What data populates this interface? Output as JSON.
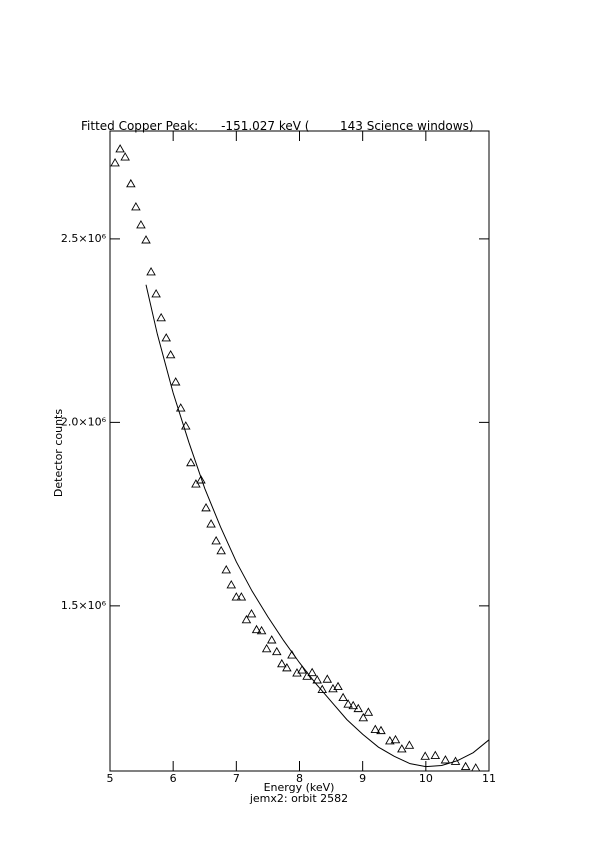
{
  "chart_data": {
    "type": "scatter",
    "title": "Fitted Copper Peak:      -151.027 keV (        143 Science windows)",
    "x_label": "Energy (keV)",
    "subtitle": "jemx2: orbit 2582",
    "y_label": "Detector counts",
    "xlim": [
      5,
      11
    ],
    "xticks": [
      5,
      6,
      7,
      8,
      9,
      10,
      11
    ],
    "ylim": [
      1050000,
      2794000
    ],
    "yticks": [
      {
        "value": 1500000,
        "label": "1.5×10⁶"
      },
      {
        "value": 2000000,
        "label": "2.0×10⁶"
      },
      {
        "value": 2500000,
        "label": "2.5×10⁶"
      }
    ],
    "color": "#000000",
    "series": [
      {
        "style": "markers",
        "marker": "triangle",
        "x": [
          5.08,
          5.16,
          5.24,
          5.33,
          5.41,
          5.49,
          5.57,
          5.65,
          5.73,
          5.81,
          5.89,
          5.96,
          6.04,
          6.12,
          6.2,
          6.28,
          6.36,
          6.44,
          6.52,
          6.6,
          6.68,
          6.76,
          6.84,
          6.92,
          7.0,
          7.08,
          7.16,
          7.24,
          7.32,
          7.4,
          7.48,
          7.56,
          7.64,
          7.72,
          7.8,
          7.88,
          7.96,
          8.04,
          8.12,
          8.2,
          8.28,
          8.36,
          8.44,
          8.53,
          8.61,
          8.69,
          8.77,
          8.85,
          8.93,
          9.01,
          9.09,
          9.2,
          9.29,
          9.43,
          9.52,
          9.62,
          9.74,
          9.99,
          10.15,
          10.31,
          10.47,
          10.63,
          10.79
        ],
        "values": [
          2707000,
          2745000,
          2723000,
          2650000,
          2587000,
          2538000,
          2497000,
          2410000,
          2350000,
          2285000,
          2230000,
          2184000,
          2110000,
          2039000,
          1990000,
          1890000,
          1832000,
          1843000,
          1767000,
          1723000,
          1677000,
          1650000,
          1598000,
          1557000,
          1524000,
          1524000,
          1462000,
          1478000,
          1435000,
          1432000,
          1383000,
          1407000,
          1375000,
          1342000,
          1331000,
          1366000,
          1317000,
          1325000,
          1308000,
          1318000,
          1298000,
          1272000,
          1300000,
          1274000,
          1280000,
          1250000,
          1232000,
          1228000,
          1220000,
          1195000,
          1210000,
          1163000,
          1160000,
          1132000,
          1135000,
          1110000,
          1120000,
          1090000,
          1092000,
          1080000,
          1076000,
          1062000,
          1058000
        ]
      },
      {
        "style": "line",
        "x": [
          5.57,
          5.75,
          6.0,
          6.25,
          6.5,
          6.75,
          7.0,
          7.25,
          7.5,
          7.75,
          8.0,
          8.25,
          8.5,
          8.75,
          9.0,
          9.25,
          9.5,
          9.75,
          10.0,
          10.25,
          10.5,
          10.75,
          11.0
        ],
        "values": [
          2375000,
          2240000,
          2080000,
          1945000,
          1820000,
          1715000,
          1620000,
          1540000,
          1470000,
          1405000,
          1345000,
          1290000,
          1240000,
          1190000,
          1150000,
          1115000,
          1090000,
          1070000,
          1062000,
          1065000,
          1078000,
          1100000,
          1135000
        ]
      }
    ]
  }
}
